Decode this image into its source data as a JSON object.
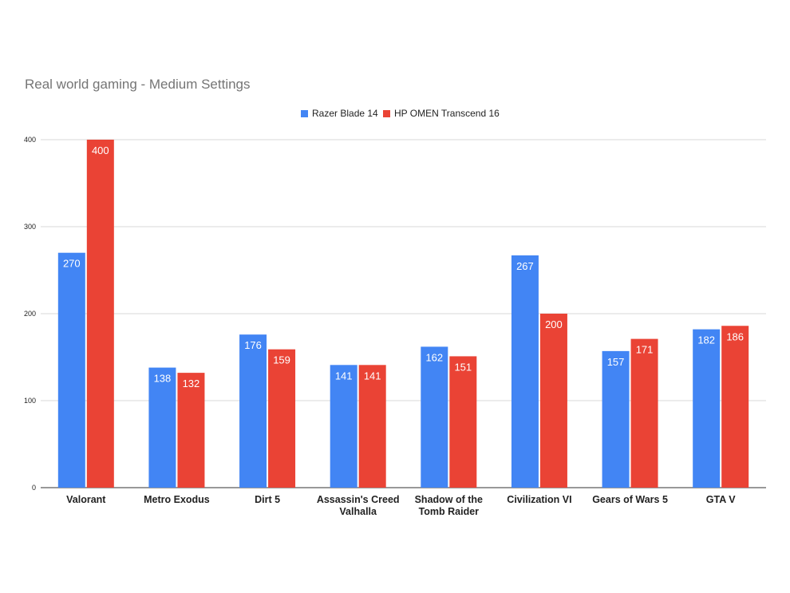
{
  "chart_data": {
    "type": "bar",
    "title": "Real world gaming - Medium Settings",
    "categories": [
      [
        "Valorant"
      ],
      [
        "Metro Exodus"
      ],
      [
        "Dirt 5"
      ],
      [
        "Assassin's Creed",
        "Valhalla"
      ],
      [
        "Shadow of the",
        "Tomb Raider"
      ],
      [
        "Civilization VI"
      ],
      [
        "Gears of Wars 5"
      ],
      [
        "GTA V"
      ]
    ],
    "series": [
      {
        "name": "Razer Blade 14",
        "color": "#4285f4",
        "values": [
          270,
          138,
          176,
          141,
          162,
          267,
          157,
          182
        ]
      },
      {
        "name": "HP OMEN Transcend 16",
        "color": "#ea4335",
        "values": [
          400,
          132,
          159,
          141,
          151,
          200,
          171,
          186
        ]
      }
    ],
    "ylim": [
      0,
      400
    ],
    "yticks": [
      0,
      100,
      200,
      300,
      400
    ],
    "grid": true,
    "legend": "top-center"
  }
}
